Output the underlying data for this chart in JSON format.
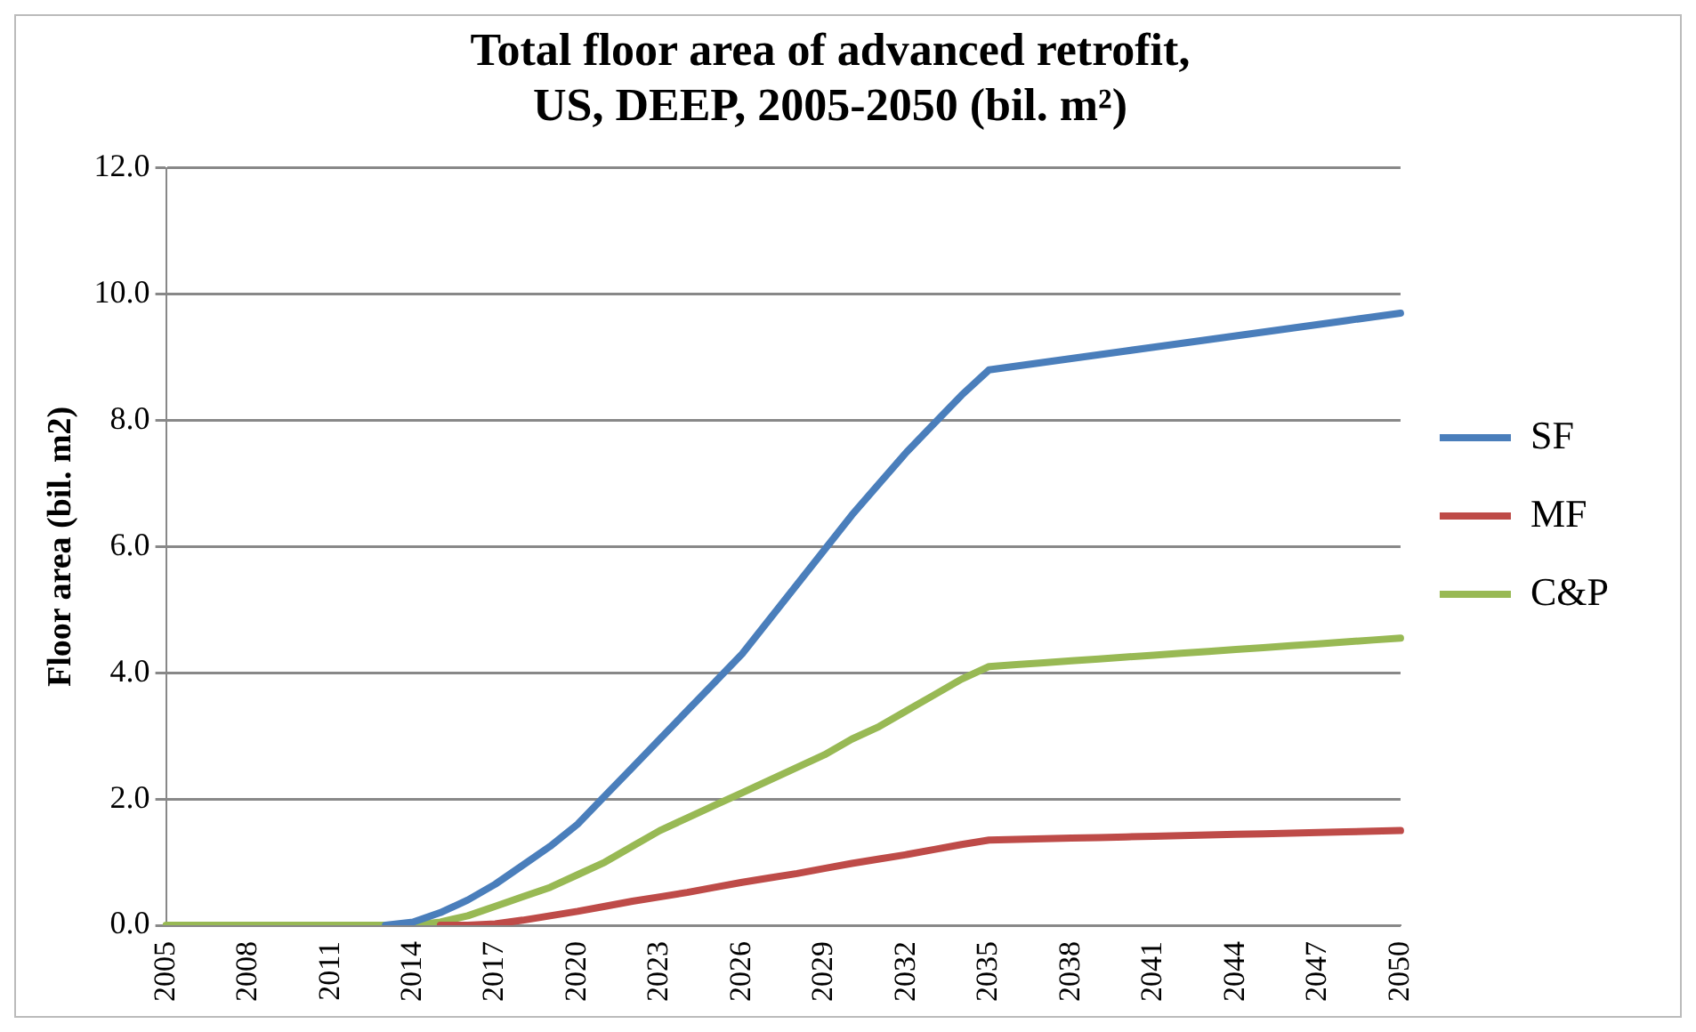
{
  "chart_data": {
    "type": "line",
    "title": [
      "Total floor area of advanced retrofit,",
      "US, DEEP, 2005-2050 (bil. m²)"
    ],
    "ylabel": "Floor area (bil. m2)",
    "categories": [
      "2005",
      null,
      null,
      "2008",
      null,
      null,
      "2011",
      null,
      null,
      "2014",
      null,
      null,
      "2017",
      null,
      null,
      "2020",
      null,
      null,
      "2023",
      null,
      null,
      "2026",
      null,
      null,
      "2029",
      null,
      null,
      "2032",
      null,
      null,
      "2035",
      null,
      null,
      "2038",
      null,
      null,
      "2041",
      null,
      null,
      "2044",
      null,
      null,
      "2047",
      null,
      null,
      "2050"
    ],
    "series": [
      {
        "name": "SF",
        "color": "#4a7ebb",
        "values": [
          null,
          null,
          null,
          null,
          null,
          null,
          null,
          null,
          0,
          0.05,
          0.2,
          0.4,
          0.65,
          0.95,
          1.25,
          1.6,
          2.05,
          2.5,
          2.95,
          3.4,
          3.85,
          4.3,
          4.85,
          5.4,
          5.95,
          6.5,
          7.0,
          7.5,
          7.95,
          8.4,
          8.8,
          8.86,
          8.92,
          8.98,
          9.04,
          9.1,
          9.16,
          9.22,
          9.28,
          9.34,
          9.4,
          9.46,
          9.52,
          9.58,
          9.64,
          9.7
        ]
      },
      {
        "name": "MF",
        "color": "#be4b48",
        "values": [
          null,
          null,
          null,
          null,
          null,
          null,
          null,
          null,
          null,
          null,
          0,
          0,
          0.02,
          0.08,
          0.15,
          0.22,
          0.3,
          0.38,
          0.45,
          0.52,
          0.6,
          0.68,
          0.75,
          0.82,
          0.9,
          0.98,
          1.05,
          1.12,
          1.2,
          1.28,
          1.35,
          1.36,
          1.37,
          1.38,
          1.39,
          1.4,
          1.41,
          1.42,
          1.43,
          1.44,
          1.45,
          1.46,
          1.47,
          1.48,
          1.49,
          1.5
        ]
      },
      {
        "name": "C&P",
        "color": "#98b954",
        "values": [
          0,
          0,
          0,
          0,
          0,
          0,
          0,
          0,
          0,
          0,
          0.05,
          0.15,
          0.3,
          0.45,
          0.6,
          0.8,
          1.0,
          1.25,
          1.5,
          1.7,
          1.9,
          2.1,
          2.3,
          2.5,
          2.7,
          2.95,
          3.15,
          3.4,
          3.65,
          3.9,
          4.1,
          4.13,
          4.16,
          4.19,
          4.22,
          4.25,
          4.28,
          4.31,
          4.34,
          4.37,
          4.4,
          4.43,
          4.46,
          4.49,
          4.52,
          4.55
        ]
      }
    ],
    "ylim": [
      0,
      12
    ],
    "yticks": [
      {
        "value": 0,
        "label": "0.0"
      },
      {
        "value": 2,
        "label": "2.0"
      },
      {
        "value": 4,
        "label": "4.0"
      },
      {
        "value": 6,
        "label": "6.0"
      },
      {
        "value": 8,
        "label": "8.0"
      },
      {
        "value": 10,
        "label": "10.0"
      },
      {
        "value": 12,
        "label": "12.0"
      }
    ],
    "grid": "y",
    "legend": "right",
    "marker": "none",
    "line_style": "solid"
  }
}
